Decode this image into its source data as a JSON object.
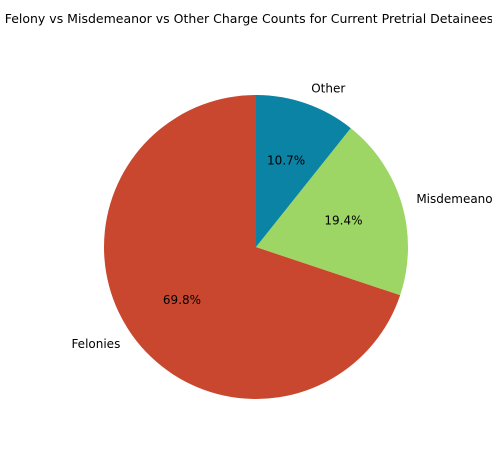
{
  "chart_data": {
    "type": "pie",
    "title": "Felony vs Misdemeanor vs Other Charge Counts for Current Pretrial Detainees",
    "slices": [
      {
        "label": "Felonies",
        "value": 69.8,
        "percent_label": "69.8%",
        "color": "#c9472e"
      },
      {
        "label": "Misdemeanors",
        "value": 19.4,
        "percent_label": "19.4%",
        "color": "#9dd665"
      },
      {
        "label": "Other",
        "value": 10.7,
        "percent_label": "10.7%",
        "color": "#0a83a5"
      }
    ],
    "start_angle_deg": 90,
    "direction": "counterclockwise",
    "legend": "none",
    "grid": false
  }
}
